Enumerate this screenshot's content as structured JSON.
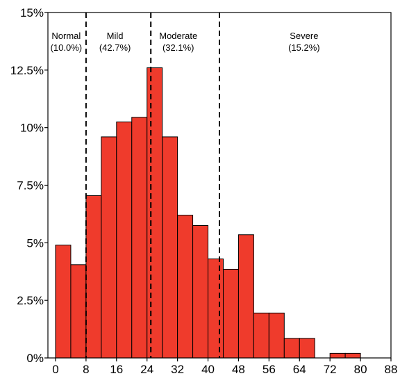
{
  "chart_data": {
    "type": "bar",
    "title": "",
    "xlabel": "",
    "ylabel": "",
    "x_bin_width": 4,
    "xlim": [
      -2,
      88
    ],
    "ylim": [
      0,
      15
    ],
    "grid": false,
    "bar_color": "#ef3b2c",
    "bar_edge_color": "#000000",
    "x_tick_values": [
      0,
      8,
      16,
      24,
      32,
      40,
      48,
      56,
      64,
      72,
      80,
      88
    ],
    "x_tick_labels": [
      "0",
      "8",
      "16",
      "24",
      "32",
      "40",
      "48",
      "56",
      "64",
      "72",
      "80",
      "88"
    ],
    "y_tick_values": [
      0,
      2.5,
      5,
      7.5,
      10,
      12.5,
      15
    ],
    "y_tick_labels": [
      "0%",
      "2.5%",
      "5%",
      "7.5%",
      "10%",
      "12.5%",
      "15%"
    ],
    "bins": [
      {
        "start": 0,
        "value": 4.9
      },
      {
        "start": 4,
        "value": 4.05
      },
      {
        "start": 8,
        "value": 7.05
      },
      {
        "start": 12,
        "value": 9.6
      },
      {
        "start": 16,
        "value": 10.25
      },
      {
        "start": 20,
        "value": 10.45
      },
      {
        "start": 24,
        "value": 12.6
      },
      {
        "start": 28,
        "value": 9.6
      },
      {
        "start": 32,
        "value": 6.2
      },
      {
        "start": 36,
        "value": 5.75
      },
      {
        "start": 40,
        "value": 4.3
      },
      {
        "start": 44,
        "value": 3.85
      },
      {
        "start": 48,
        "value": 5.35
      },
      {
        "start": 52,
        "value": 1.95
      },
      {
        "start": 56,
        "value": 1.95
      },
      {
        "start": 60,
        "value": 0.85
      },
      {
        "start": 64,
        "value": 0.85
      },
      {
        "start": 68,
        "value": 0
      },
      {
        "start": 72,
        "value": 0.2
      },
      {
        "start": 76,
        "value": 0.2
      },
      {
        "start": 80,
        "value": 0
      },
      {
        "start": 84,
        "value": 0
      }
    ],
    "thresholds": [
      8,
      25,
      43
    ],
    "regions": [
      {
        "name": "Normal",
        "percent": "(10.0%)",
        "center": 2.8
      },
      {
        "name": "Mild",
        "percent": "(42.7%)",
        "center": 15.6
      },
      {
        "name": "Moderate",
        "percent": "(32.1%)",
        "center": 32.2
      },
      {
        "name": "Severe",
        "percent": "(15.2%)",
        "center": 65.2
      }
    ]
  }
}
